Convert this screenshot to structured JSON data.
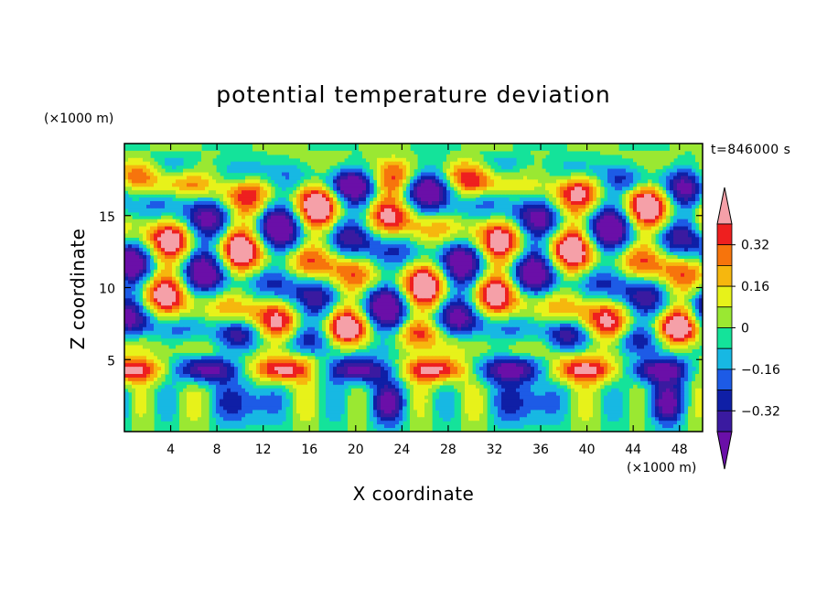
{
  "chart_data": {
    "type": "heatmap",
    "title": "potential temperature deviation",
    "xlabel": "X coordinate",
    "ylabel": "Z coordinate",
    "x_unit": "(×1000 m)",
    "y_unit": "(×1000 m)",
    "time_stamp": "t=846000 s",
    "xlim": [
      0,
      50
    ],
    "ylim": [
      0,
      20
    ],
    "x_ticks": [
      4,
      8,
      12,
      16,
      20,
      24,
      28,
      32,
      36,
      40,
      44,
      48
    ],
    "y_ticks": [
      5,
      10,
      15
    ],
    "colorbar": {
      "levels": [
        -0.48,
        -0.4,
        -0.32,
        -0.24,
        -0.16,
        -0.08,
        0,
        0.08,
        0.16,
        0.24,
        0.32,
        0.4
      ],
      "tick_labels": [
        "0.32",
        "0.16",
        "0",
        "−0.16",
        "−0.32"
      ],
      "tick_values": [
        0.32,
        0.16,
        0,
        -0.16,
        -0.32
      ],
      "colors": [
        "#6a0fa8",
        "#3a1aa0",
        "#0f1fa6",
        "#1d5be6",
        "#17b8e3",
        "#14e39a",
        "#9ae832",
        "#e7f21a",
        "#f6b70e",
        "#f7740c",
        "#ee1f1f",
        "#f5a0a8"
      ]
    }
  }
}
